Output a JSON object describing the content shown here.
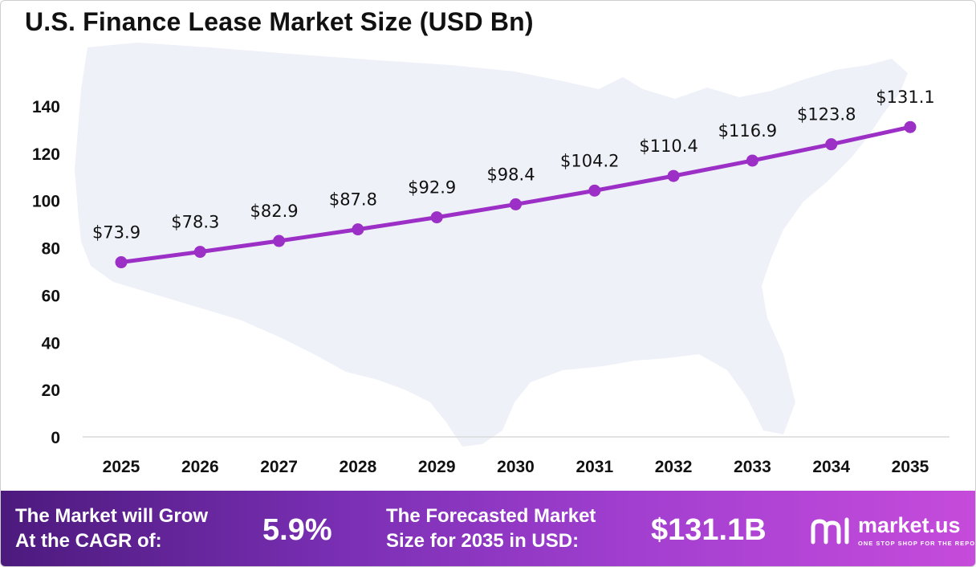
{
  "title": "U.S. Finance Lease Market Size (USD Bn)",
  "chart_data": {
    "type": "line",
    "title": "U.S. Finance Lease Market Size (USD Bn)",
    "categories": [
      "2025",
      "2026",
      "2027",
      "2028",
      "2029",
      "2030",
      "2031",
      "2032",
      "2033",
      "2034",
      "2035"
    ],
    "series": [
      {
        "values": [
          73.9,
          78.3,
          82.9,
          87.8,
          92.9,
          98.4,
          104.2,
          110.4,
          116.9,
          123.8,
          131.1
        ],
        "labels": [
          "$73.9",
          "$78.3",
          "$82.9",
          "$87.8",
          "$92.9",
          "$98.4",
          "$104.2",
          "$110.4",
          "$116.9",
          "$123.8",
          "$131.1"
        ],
        "color": "#9b2fc6"
      }
    ],
    "yticks": [
      "0",
      "20",
      "40",
      "60",
      "80",
      "100",
      "120",
      "140"
    ],
    "ylim": [
      0,
      140
    ],
    "grid": false,
    "legend": "none"
  },
  "footer": {
    "cagr_text_line1": "The Market will Grow",
    "cagr_text_line2": "At the CAGR of:",
    "cagr_value": "5.9%",
    "forecast_text_line1": "The Forecasted Market",
    "forecast_text_line2": "Size for 2035 in USD:",
    "forecast_value": "$131.1B"
  },
  "brand": {
    "name": "market.us",
    "tagline": "ONE STOP SHOP FOR THE REPORTS",
    "icon": "market-us-logo-icon"
  },
  "colors": {
    "line": "#9b2fc6",
    "map": "#eef1f8",
    "footer_start": "#4c1a7d",
    "footer_end": "#c64bdb"
  }
}
